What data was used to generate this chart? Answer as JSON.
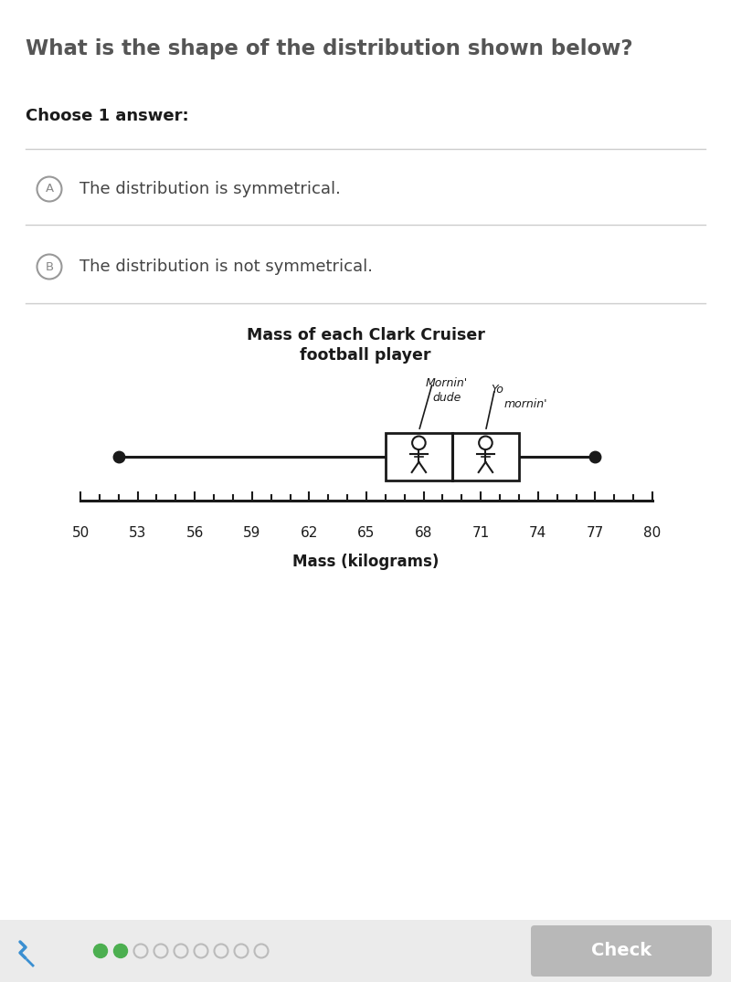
{
  "title": "What is the shape of the distribution shown below?",
  "subtitle": "Choose 1 answer:",
  "option_a": "The distribution is symmetrical.",
  "option_b": "The distribution is not symmetrical.",
  "chart_title_line1": "Mass of each Clark Cruiser",
  "chart_title_line2": "football player",
  "xlabel": "Mass (kilograms)",
  "xmin": 50,
  "xmax": 80,
  "xticks": [
    50,
    53,
    56,
    59,
    62,
    65,
    68,
    71,
    74,
    77,
    80
  ],
  "whisker_low": 52,
  "q1": 66,
  "median": 69.5,
  "q3": 73,
  "whisker_high": 77,
  "bg_color": "#ffffff",
  "text_color_title": "#555555",
  "text_color_dark": "#1a1a1a",
  "text_color_option": "#444444",
  "dot_color": "#1a1a1a",
  "separator_color": "#cccccc",
  "check_btn_color": "#b8b8b8",
  "check_btn_text": "Check",
  "progress_dot1": "#4caf50",
  "progress_dot2": "#3a8fd1",
  "footer_bg": "#f0f0f0",
  "annotation1_line1": "Mornin'",
  "annotation1_line2": "dude",
  "annotation2_line1": "Yo",
  "annotation2_line2": "mornin'"
}
